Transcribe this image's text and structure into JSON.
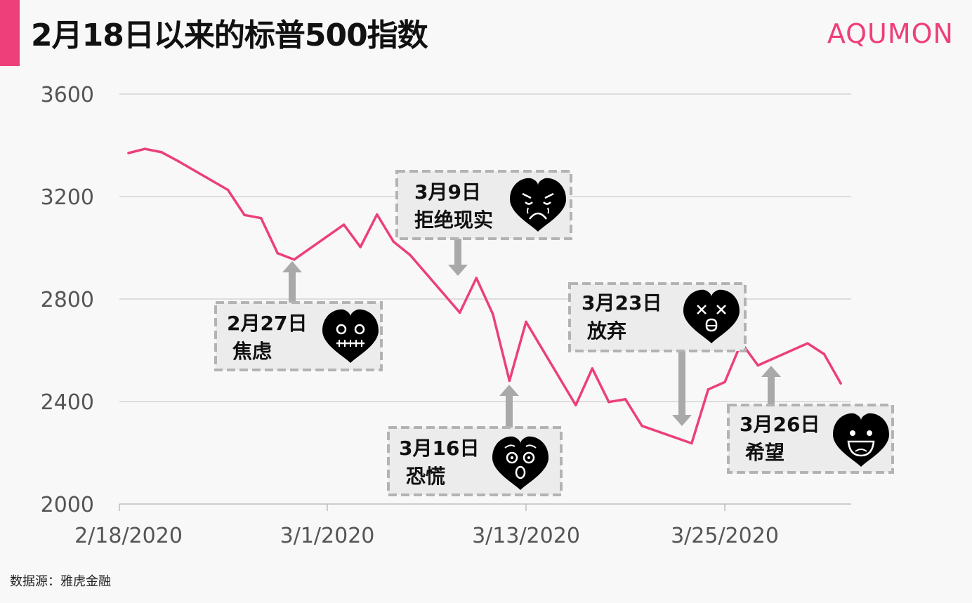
{
  "header": {
    "title": "2月18日以来的标普500指数",
    "brand": "AQUMON",
    "accent_color": "#ee3f7a"
  },
  "footer": {
    "source": "数据源：雅虎金融"
  },
  "chart_data": {
    "type": "line",
    "title": "2月18日以来的标普500指数",
    "ylim": [
      2000,
      3600
    ],
    "yticks": [
      "2000",
      "2400",
      "2800",
      "3200",
      "3600"
    ],
    "xtick_labels": [
      "2/18/2020",
      "3/1/2020",
      "3/13/2020",
      "3/25/2020"
    ],
    "grid": "horizontal",
    "line_color": "#ec3f7c",
    "series": [
      {
        "x": [
          "2020-02-18",
          "2020-02-19",
          "2020-02-20",
          "2020-02-21",
          "2020-02-24",
          "2020-02-25",
          "2020-02-26",
          "2020-02-27",
          "2020-02-28",
          "2020-03-02",
          "2020-03-03",
          "2020-03-04",
          "2020-03-05",
          "2020-03-06",
          "2020-03-09",
          "2020-03-10",
          "2020-03-11",
          "2020-03-12",
          "2020-03-13",
          "2020-03-16",
          "2020-03-17",
          "2020-03-18",
          "2020-03-19",
          "2020-03-20",
          "2020-03-23",
          "2020-03-24",
          "2020-03-25",
          "2020-03-26",
          "2020-03-27",
          "2020-03-30",
          "2020-03-31",
          "2020-04-01"
        ],
        "values": [
          3370,
          3386,
          3373,
          3338,
          3226,
          3128,
          3116,
          2979,
          2954,
          3090,
          3003,
          3130,
          3024,
          2972,
          2747,
          2882,
          2741,
          2481,
          2711,
          2386,
          2529,
          2398,
          2409,
          2305,
          2237,
          2447,
          2476,
          2630,
          2541,
          2627,
          2585,
          2471
        ]
      }
    ],
    "annotations": [
      {
        "date_label": "2月27日",
        "emotion": "焦虑",
        "face": "grimace-heart-icon"
      },
      {
        "date_label": "3月9日",
        "emotion": "拒绝现实",
        "face": "crying-heart-icon"
      },
      {
        "date_label": "3月16日",
        "emotion": "恐慌",
        "face": "shocked-heart-icon"
      },
      {
        "date_label": "3月23日",
        "emotion": "放弃",
        "face": "dizzy-heart-icon"
      },
      {
        "date_label": "3月26日",
        "emotion": "希望",
        "face": "grinning-heart-icon"
      }
    ]
  }
}
